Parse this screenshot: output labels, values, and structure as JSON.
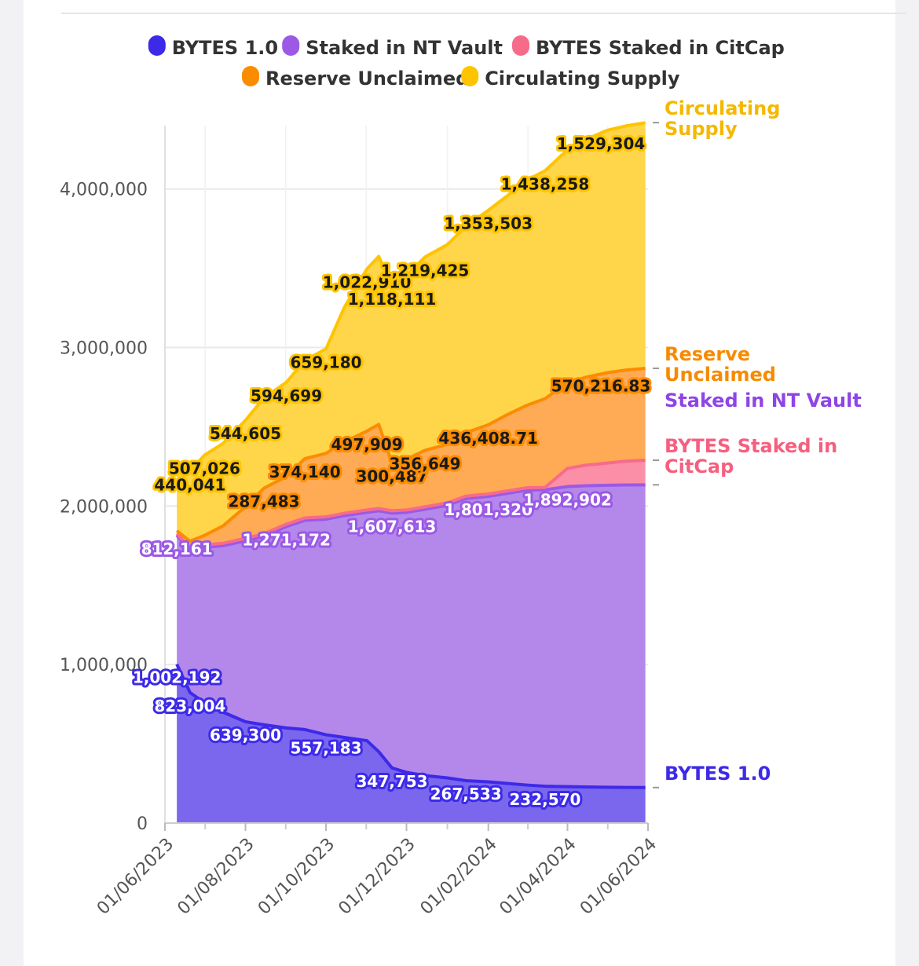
{
  "chart_data": {
    "type": "area",
    "stacked": true,
    "x_axis": {
      "ticks": [
        "01/06/2023",
        "01/08/2023",
        "01/10/2023",
        "01/12/2023",
        "01/02/2024",
        "01/04/2024",
        "01/06/2024"
      ]
    },
    "y_axis": {
      "ticks": [
        "0",
        "1,000,000",
        "2,000,000",
        "3,000,000",
        "4,000,000"
      ],
      "ylim": [
        0,
        4400000
      ]
    },
    "grid": true,
    "legend": [
      {
        "name": "BYTES 1.0",
        "color": "#3d2ae8"
      },
      {
        "name": "Staked in NT Vault",
        "color": "#9b59e6"
      },
      {
        "name": "BYTES Staked in CitCap",
        "color": "#f76b8a"
      },
      {
        "name": "Reserve Unclaimed",
        "color": "#fb8c00"
      },
      {
        "name": "Circulating Supply",
        "color": "#ffc400"
      }
    ],
    "x_dates": [
      "2023-06-10",
      "2023-06-20",
      "2023-07-01",
      "2023-07-15",
      "2023-08-01",
      "2023-08-15",
      "2023-09-01",
      "2023-09-15",
      "2023-10-01",
      "2023-10-15",
      "2023-11-01",
      "2023-11-10",
      "2023-11-20",
      "2023-12-01",
      "2023-12-15",
      "2024-01-01",
      "2024-01-15",
      "2024-02-01",
      "2024-02-15",
      "2024-03-01",
      "2024-03-15",
      "2024-04-01",
      "2024-04-15",
      "2024-05-01",
      "2024-05-15",
      "2024-05-30"
    ],
    "series": [
      {
        "name": "BYTES 1.0",
        "color": "#3d2ae8",
        "fill": "#7b67ee",
        "values": [
          1002192,
          823004,
          760000,
          700000,
          639300,
          620000,
          600000,
          590000,
          557183,
          540000,
          520000,
          450000,
          347753,
          320000,
          300000,
          285000,
          267533,
          260000,
          250000,
          240000,
          232570,
          230000,
          228000,
          226000,
          225000,
          224000
        ]
      },
      {
        "name": "Staked in NT Vault",
        "color": "#9b59e6",
        "fill": "#b388ea",
        "values": [
          812161,
          900000,
          980000,
          1050000,
          1142000,
          1190000,
          1271172,
          1320000,
          1360000,
          1400000,
          1440000,
          1520000,
          1607613,
          1640000,
          1680000,
          1720000,
          1780000,
          1801320,
          1830000,
          1860000,
          1870000,
          1892902,
          1900000,
          1905000,
          1908000,
          1910000
        ]
      },
      {
        "name": "BYTES Staked in CitCap",
        "color": "#f76b8a",
        "fill": "#fb8fa8",
        "values": [
          10000,
          15000,
          15000,
          15000,
          15000,
          15000,
          15000,
          15000,
          15000,
          15000,
          15000,
          15000,
          15000,
          15000,
          15000,
          15000,
          15000,
          15000,
          15000,
          15000,
          15000,
          115000,
          130000,
          140000,
          150000,
          155000
        ]
      },
      {
        "name": "Reserve Unclaimed",
        "color": "#fb8c00",
        "fill": "#ffaa55",
        "values": [
          20000,
          40000,
          60000,
          110000,
          200000,
          287483,
          300000,
          374140,
          400000,
          450000,
          497909,
          530000,
          300487,
          320000,
          356649,
          370000,
          400000,
          436408.71,
          480000,
          520000,
          560000,
          540000,
          555000,
          570216.83,
          575000,
          580000
        ]
      },
      {
        "name": "Circulating Supply",
        "color": "#ffc400",
        "fill": "#ffd54a",
        "values": [
          380000,
          440041,
          507026,
          520000,
          544605,
          570000,
          594699,
          620000,
          659180,
          850000,
          1022910,
          1060000,
          1118111,
          1160000,
          1219425,
          1260000,
          1300000,
          1353503,
          1380000,
          1420000,
          1438258,
          1470000,
          1500000,
          1529304,
          1540000,
          1550000
        ]
      }
    ],
    "data_labels": [
      {
        "series": "BYTES 1.0",
        "labels": [
          {
            "i": 0,
            "text": "1,002,192"
          },
          {
            "i": 1,
            "text": "823,004"
          },
          {
            "i": 4,
            "text": "639,300"
          },
          {
            "i": 8,
            "text": "557,183"
          },
          {
            "i": 12,
            "text": "347,753"
          },
          {
            "i": 16,
            "text": "267,533"
          },
          {
            "i": 20,
            "text": "232,570"
          }
        ]
      },
      {
        "series": "Staked in NT Vault",
        "labels": [
          {
            "i": 0,
            "text": "812,161"
          },
          {
            "i": 6,
            "text": "1,271,172"
          },
          {
            "i": 12,
            "text": "1,607,613"
          },
          {
            "i": 17,
            "text": "1,801,320"
          },
          {
            "i": 21,
            "text": "1,892,902"
          }
        ]
      },
      {
        "series": "Reserve Unclaimed",
        "labels": [
          {
            "i": 5,
            "text": "287,483"
          },
          {
            "i": 7,
            "text": "374,140"
          },
          {
            "i": 10,
            "text": "497,909"
          },
          {
            "i": 12,
            "text": "300,487"
          },
          {
            "i": 14,
            "text": "356,649"
          },
          {
            "i": 17,
            "text": "436,408.71"
          },
          {
            "i": 23,
            "text": "570,216.83"
          }
        ]
      },
      {
        "series": "Circulating Supply",
        "labels": [
          {
            "i": 1,
            "text": "440,041"
          },
          {
            "i": 2,
            "text": "507,026"
          },
          {
            "i": 4,
            "text": "544,605"
          },
          {
            "i": 6,
            "text": "594,699"
          },
          {
            "i": 8,
            "text": "659,180"
          },
          {
            "i": 10,
            "text": "1,022,910"
          },
          {
            "i": 12,
            "text": "1,118,111"
          },
          {
            "i": 14,
            "text": "1,219,425"
          },
          {
            "i": 17,
            "text": "1,353,503"
          },
          {
            "i": 20,
            "text": "1,438,258"
          },
          {
            "i": 23,
            "text": "1,529,304"
          }
        ]
      }
    ],
    "end_labels": [
      {
        "series": "Circulating Supply",
        "lines": [
          "Circulating",
          "Supply"
        ],
        "color": "#f5b800"
      },
      {
        "series": "Reserve Unclaimed",
        "lines": [
          "Reserve",
          "Unclaimed"
        ],
        "color": "#f78a00"
      },
      {
        "series": "BYTES Staked in CitCap",
        "lines": [
          "BYTES Staked in",
          "CitCap"
        ],
        "color": "#f4607f"
      },
      {
        "series": "Staked in NT Vault",
        "lines": [
          "Staked in NT Vault"
        ],
        "color": "#8e44e6"
      },
      {
        "series": "BYTES 1.0",
        "lines": [
          "BYTES 1.0"
        ],
        "color": "#3d2ae8"
      }
    ]
  }
}
